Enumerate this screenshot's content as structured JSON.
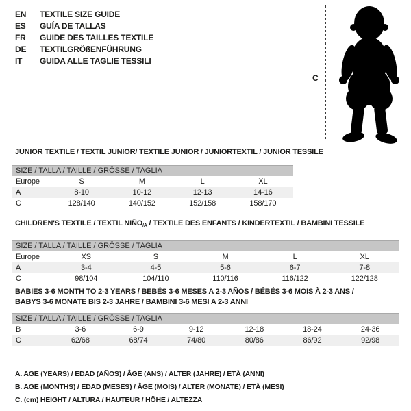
{
  "languages": [
    {
      "code": "EN",
      "label": "TEXTILE SIZE GUIDE"
    },
    {
      "code": "ES",
      "label": "GUÍA DE TALLAS"
    },
    {
      "code": "FR",
      "label": "GUIDE DES TAILLES TEXTILE"
    },
    {
      "code": "DE",
      "label": "TEXTILGRÖßENFÜHRUNG"
    },
    {
      "code": "IT",
      "label": "GUIDA ALLE TAGLIE TESSILI"
    }
  ],
  "figure": {
    "height_label": "C"
  },
  "tables": [
    {
      "title": "JUNIOR TEXTILE / TEXTIL JUNIOR/ TEXTILE JUNIOR / JUNIORTEXTIL / JUNIOR TESSILE",
      "size_header": "SIZE / TALLA / TAILLE / GRÖSSE / TAGLIA",
      "rows": [
        {
          "label": "Europe",
          "values": [
            "S",
            "M",
            "L",
            "XL"
          ],
          "shade": false
        },
        {
          "label": "A",
          "values": [
            "8-10",
            "10-12",
            "12-13",
            "14-16"
          ],
          "shade": true
        },
        {
          "label": "C",
          "values": [
            "128/140",
            "140/152",
            "152/158",
            "158/170"
          ],
          "shade": false
        }
      ]
    },
    {
      "title_pre": "CHILDREN'S TEXTILE / TEXTIL NIÑO",
      "title_sub": "/A",
      "title_post": " / TEXTILE DES ENFANTS / KINDERTEXTIL / BAMBINI TESSILE",
      "size_header": "SIZE / TALLA / TAILLE / GRÖSSE / TAGLIA",
      "rows": [
        {
          "label": "Europe",
          "values": [
            "XS",
            "S",
            "M",
            "L",
            "XL"
          ],
          "shade": false
        },
        {
          "label": "A",
          "values": [
            "3-4",
            "4-5",
            "5-6",
            "6-7",
            "7-8"
          ],
          "shade": true
        },
        {
          "label": "C",
          "values": [
            "98/104",
            "104/110",
            "110/116",
            "116/122",
            "122/128"
          ],
          "shade": false
        }
      ]
    },
    {
      "title_line1": "BABIES 3-6 MONTH TO 2-3 YEARS / BEBÉS 3-6 MESES A 2-3 AÑOS / BÉBÉS 3-6 MOIS À 2-3 ANS /",
      "title_line2": "BABYS 3-6 MONATE BIS 2-3 JAHRE / BAMBINI 3-6 MESI A 2-3 ANNI",
      "size_header": "SIZE / TALLA / TAILLE / GRÖSSE / TAGLIA",
      "rows": [
        {
          "label": "B",
          "values": [
            "3-6",
            "6-9",
            "9-12",
            "12-18",
            "18-24",
            "24-36"
          ],
          "shade": false
        },
        {
          "label": "C",
          "values": [
            "62/68",
            "68/74",
            "74/80",
            "80/86",
            "86/92",
            "92/98"
          ],
          "shade": true
        }
      ]
    }
  ],
  "legend": [
    "A. AGE (YEARS) / EDAD (AÑOS) / ÂGE (ANS) / ALTER (JAHRE) / ETÀ (ANNI)",
    "B. AGE (MONTHS) / EDAD (MESES) / ÂGE (MOIS) / ALTER (MONATE) / ETÀ (MESI)",
    "C. (cm) HEIGHT / ALTURA / HAUTEUR / HÖHE / ALTEZZA"
  ],
  "colors": {
    "header_bar": "#c6c6c6",
    "row_shade": "#efefef",
    "text": "#1d1d1b",
    "silhouette": "#000000"
  }
}
